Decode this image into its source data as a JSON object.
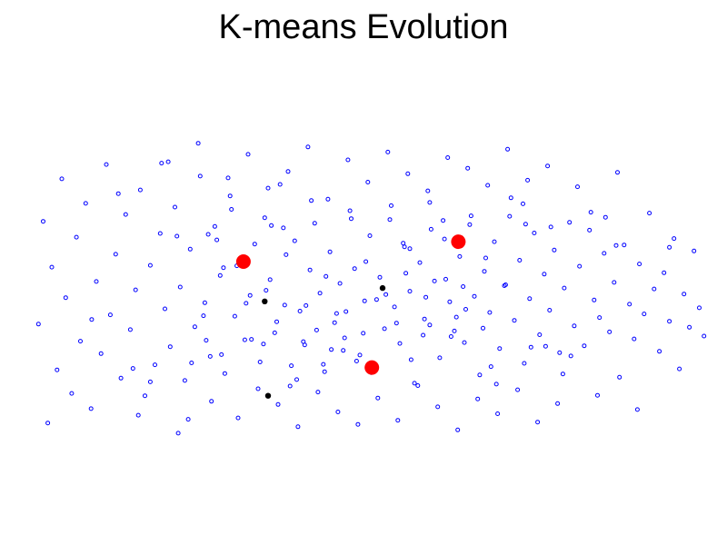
{
  "chart_data": {
    "type": "scatter",
    "title": "K-means Evolution",
    "xlabel": "",
    "ylabel": "",
    "axes_visible": false,
    "grid": false,
    "colors": {
      "points": "#0000ff",
      "centroids": "#ff0000",
      "previous_centroids": "#000000"
    },
    "series": [
      {
        "role": "points",
        "marker": "hollow-circle",
        "x": [
          0.0,
          0.7,
          1.4,
          2.0,
          2.8,
          3.5,
          4.1,
          5.0,
          5.7,
          6.3,
          7.1,
          7.9,
          8.7,
          9.4,
          10.2,
          10.8,
          11.6,
          12.4,
          13.1,
          13.8,
          14.6,
          15.3,
          16.0,
          16.8,
          17.5,
          18.3,
          19.0,
          19.8,
          20.5,
          21.3,
          22.0,
          22.8,
          23.5,
          24.3,
          25.0,
          25.8,
          26.5,
          27.3,
          28.0,
          28.8,
          29.5,
          30.3,
          31.0,
          31.8,
          32.5,
          33.3,
          34.0,
          34.8,
          35.5,
          36.3,
          37.0,
          37.8,
          38.5,
          39.3,
          40.0,
          40.8,
          41.5,
          42.3,
          43.0,
          43.8,
          44.5,
          45.3,
          46.0,
          46.8,
          47.5,
          48.3,
          49.0,
          49.8,
          50.5,
          51.3,
          52.0,
          52.8,
          53.5,
          54.3,
          55.0,
          55.8,
          56.5,
          57.3,
          58.0,
          58.8,
          59.5,
          60.3,
          61.0,
          61.8,
          62.5,
          63.3,
          64.0,
          64.8,
          65.5,
          66.3,
          67.0,
          67.8,
          68.5,
          69.3,
          70.0,
          70.8,
          71.5,
          72.3,
          73.0,
          73.8,
          74.5,
          75.3,
          76.0,
          76.8,
          77.5,
          78.3,
          79.0,
          79.8,
          80.5,
          81.3,
          82.0,
          82.8,
          83.5,
          84.3,
          85.0,
          85.8,
          86.5,
          87.3,
          88.0,
          88.8,
          89.5,
          90.3,
          91.0,
          91.8,
          92.5,
          93.3,
          94.0,
          94.8,
          95.5,
          96.3,
          97.0,
          97.8,
          98.5,
          99.3,
          100.0,
          8.0,
          12.0,
          15.0,
          18.5,
          21.0,
          24.0,
          26.0,
          28.5,
          30.0,
          31.5,
          33.0,
          34.5,
          36.0,
          37.5,
          39.0,
          40.5,
          42.0,
          43.5,
          45.0,
          46.5,
          48.0,
          49.5,
          51.0,
          52.5,
          54.0,
          55.5,
          57.0,
          58.5,
          60.0,
          61.5,
          63.0,
          64.5,
          66.0,
          67.5,
          69.0,
          70.5,
          72.0,
          73.5,
          75.0,
          76.5,
          78.0,
          81.0,
          84.0,
          87.0,
          90.0,
          19.5,
          22.5,
          25.5,
          27.5,
          29.0,
          32.0,
          35.0,
          38.0,
          41.0,
          44.0,
          47.0,
          50.0,
          53.0,
          56.0,
          59.0,
          62.0,
          65.0,
          68.0,
          71.0,
          74.0,
          77.0,
          80.0,
          83.0,
          23.0,
          26.8,
          30.8,
          34.2,
          37.2,
          40.2,
          43.2,
          46.2,
          49.2,
          52.2,
          55.2,
          58.2,
          61.2,
          64.2,
          67.2,
          70.2,
          27.8,
          31.2,
          35.8,
          39.8,
          44.8,
          48.8,
          53.8,
          57.8,
          62.8,
          66.8,
          33.8,
          41.8,
          47.8,
          55.8,
          63.8,
          36.8,
          45.8,
          54.8,
          42.8,
          50.8,
          58.8,
          24.8,
          29.8,
          38.8,
          60.8,
          68.8,
          72.8,
          78.8,
          86.8,
          94.8,
          14.2,
          16.8,
          20.8,
          25.2,
          73.2,
          76.2,
          85.2
        ],
        "y": [
          40.1,
          62.3,
          18.7,
          52.4,
          30.2,
          71.5,
          45.8,
          25.1,
          58.9,
          36.4,
          66.2,
          21.8,
          49.3,
          33.7,
          74.6,
          42.1,
          55.2,
          28.4,
          63.8,
          38.9,
          47.5,
          69.1,
          24.6,
          52.8,
          31.3,
          59.7,
          43.4,
          35.2,
          65.4,
          48.1,
          27.9,
          56.3,
          39.5,
          72.1,
          44.7,
          33.1,
          61.2,
          50.6,
          29.4,
          67.8,
          41.8,
          54.1,
          36.7,
          46.3,
          57.4,
          31.9,
          63.1,
          49.7,
          38.2,
          70.3,
          44.2,
          26.7,
          58.1,
          42.9,
          35.6,
          51.8,
          61.9,
          46.8,
          29.8,
          55.7,
          40.4,
          48.9,
          37.1,
          64.6,
          52.1,
          33.4,
          45.1,
          59.2,
          30.7,
          50.2,
          39.1,
          62.7,
          43.8,
          35.9,
          56.8,
          47.2,
          27.3,
          53.4,
          41.2,
          66.4,
          49.4,
          32.8,
          58.5,
          44.9,
          38.6,
          54.7,
          36.1,
          61.6,
          46.1,
          29.1,
          51.5,
          42.6,
          57.9,
          34.8,
          48.4,
          63.4,
          40.9,
          53.9,
          31.6,
          45.6,
          59.8,
          37.8,
          50.9,
          43.1,
          56.1,
          33.9,
          47.9,
          62.1,
          39.7,
          52.6,
          35.4,
          60.4,
          45.3,
          41.5,
          55.4,
          38.4,
          49.1,
          28.6,
          57.2,
          44.4,
          36.9,
          53.1,
          42.3,
          64.1,
          47.7,
          34.2,
          51.2,
          40.7,
          58.6,
          30.4,
          46.6,
          39.4,
          55.9,
          43.6,
          37.5,
          41.1,
          68.3,
          20.4,
          74.9,
          16.5,
          79.2,
          23.4,
          71.7,
          19.8,
          76.8,
          26.1,
          69.5,
          22.7,
          73.1,
          17.9,
          78.4,
          25.4,
          67.1,
          21.1,
          75.6,
          18.4,
          70.8,
          24.1,
          77.3,
          19.3,
          72.6,
          26.8,
          68.9,
          22.2,
          76.1,
          17.2,
          73.8,
          23.9,
          70.1,
          20.7,
          77.9,
          25.9,
          71.2,
          18.9,
          74.3,
          22.9,
          69.8,
          24.7,
          72.9,
          21.6,
          75.2,
          19.5,
          59.5,
          33.5,
          64.9,
          36.8,
          61.4,
          31.1,
          66.8,
          34.6,
          62.9,
          29.6,
          65.7,
          32.4,
          60.6,
          37.4,
          63.5,
          30.9,
          67.4,
          35.1,
          61.1,
          33.2,
          64.3,
          31.7,
          58.3,
          52.9,
          47.4,
          55.1,
          44.1,
          50.4,
          42.8,
          53.6,
          46.5,
          51.1,
          45.9,
          49.8,
          43.3,
          54.4,
          48.6,
          52.3,
          44.6,
          40.6,
          36.3,
          42.4,
          38.1,
          40.3,
          37.7,
          41.6,
          39.2,
          35.8,
          38.8,
          32.1,
          56.4,
          48.2,
          60.9,
          34.4,
          57.6,
          31.4,
          45.4,
          39.9,
          41.9,
          52.7,
          28.1,
          62.5,
          27.1,
          66.1,
          29.3,
          57.1,
          56.7,
          30.5,
          27.6,
          59.1,
          36.6,
          61.7,
          35.3,
          63.2
        ],
        "note": ""
      },
      {
        "role": "centroids",
        "marker": "filled-circle",
        "x": [
          30.8,
          50.1,
          63.1
        ],
        "y": [
          53.6,
          30.7,
          57.9
        ]
      },
      {
        "role": "previous_centroids",
        "marker": "filled-dot",
        "x": [
          34.0,
          34.5,
          51.7
        ],
        "y": [
          45.0,
          24.6,
          47.9
        ]
      }
    ],
    "xlim": [
      -1,
      101
    ],
    "ylim": [
      -1,
      98
    ]
  }
}
